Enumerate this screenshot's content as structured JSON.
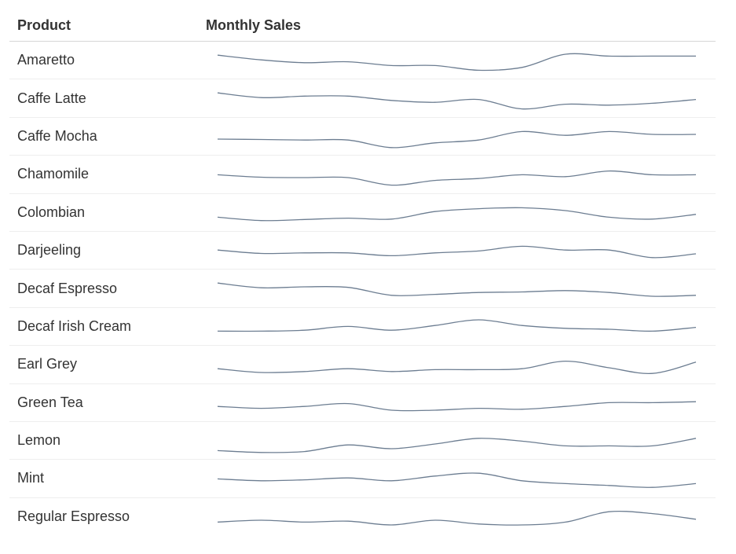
{
  "table": {
    "col_product": "Product",
    "col_sales": "Monthly Sales"
  },
  "chart_data": {
    "type": "line",
    "title": "",
    "xlabel": "",
    "ylabel": "",
    "x": [
      1,
      2,
      3,
      4,
      5,
      6,
      7,
      8,
      9,
      10,
      11,
      12
    ],
    "series_color": "#6c7d91",
    "series": [
      {
        "name": "Amaretto",
        "values": [
          0.95,
          0.7,
          0.55,
          0.6,
          0.4,
          0.4,
          0.15,
          0.3,
          1.0,
          0.9,
          0.9,
          0.9
        ]
      },
      {
        "name": "Caffe Latte",
        "values": [
          0.95,
          0.7,
          0.78,
          0.78,
          0.55,
          0.45,
          0.6,
          0.1,
          0.35,
          0.3,
          0.4,
          0.6
        ]
      },
      {
        "name": "Caffe Mocha",
        "values": [
          0.5,
          0.48,
          0.45,
          0.45,
          0.05,
          0.3,
          0.45,
          0.9,
          0.7,
          0.9,
          0.75,
          0.75
        ]
      },
      {
        "name": "Chamomile",
        "values": [
          0.65,
          0.52,
          0.5,
          0.5,
          0.1,
          0.35,
          0.45,
          0.65,
          0.55,
          0.85,
          0.65,
          0.65
        ]
      },
      {
        "name": "Colombian",
        "values": [
          0.4,
          0.22,
          0.28,
          0.35,
          0.3,
          0.7,
          0.85,
          0.9,
          0.75,
          0.4,
          0.3,
          0.55
        ]
      },
      {
        "name": "Darjeeling",
        "values": [
          0.7,
          0.52,
          0.55,
          0.55,
          0.4,
          0.55,
          0.65,
          0.9,
          0.7,
          0.7,
          0.3,
          0.5
        ]
      },
      {
        "name": "Decaf Espresso",
        "values": [
          0.95,
          0.7,
          0.75,
          0.72,
          0.3,
          0.35,
          0.45,
          0.48,
          0.55,
          0.45,
          0.25,
          0.3
        ]
      },
      {
        "name": "Decaf Irish Cream",
        "values": [
          0.4,
          0.4,
          0.45,
          0.65,
          0.45,
          0.7,
          1.0,
          0.7,
          0.55,
          0.5,
          0.4,
          0.6
        ]
      },
      {
        "name": "Earl Grey",
        "values": [
          0.45,
          0.25,
          0.3,
          0.45,
          0.3,
          0.4,
          0.4,
          0.45,
          0.85,
          0.5,
          0.2,
          0.8
        ]
      },
      {
        "name": "Green Tea",
        "values": [
          0.45,
          0.35,
          0.45,
          0.6,
          0.25,
          0.25,
          0.35,
          0.3,
          0.45,
          0.65,
          0.65,
          0.7
        ]
      },
      {
        "name": "Lemon",
        "values": [
          0.15,
          0.05,
          0.1,
          0.45,
          0.25,
          0.5,
          0.8,
          0.65,
          0.4,
          0.4,
          0.4,
          0.8
        ]
      },
      {
        "name": "Mint",
        "values": [
          0.65,
          0.55,
          0.6,
          0.7,
          0.55,
          0.8,
          0.95,
          0.55,
          0.4,
          0.3,
          0.2,
          0.4
        ]
      },
      {
        "name": "Regular Espresso",
        "values": [
          0.4,
          0.5,
          0.4,
          0.45,
          0.25,
          0.5,
          0.3,
          0.25,
          0.4,
          0.95,
          0.85,
          0.55
        ]
      }
    ]
  }
}
